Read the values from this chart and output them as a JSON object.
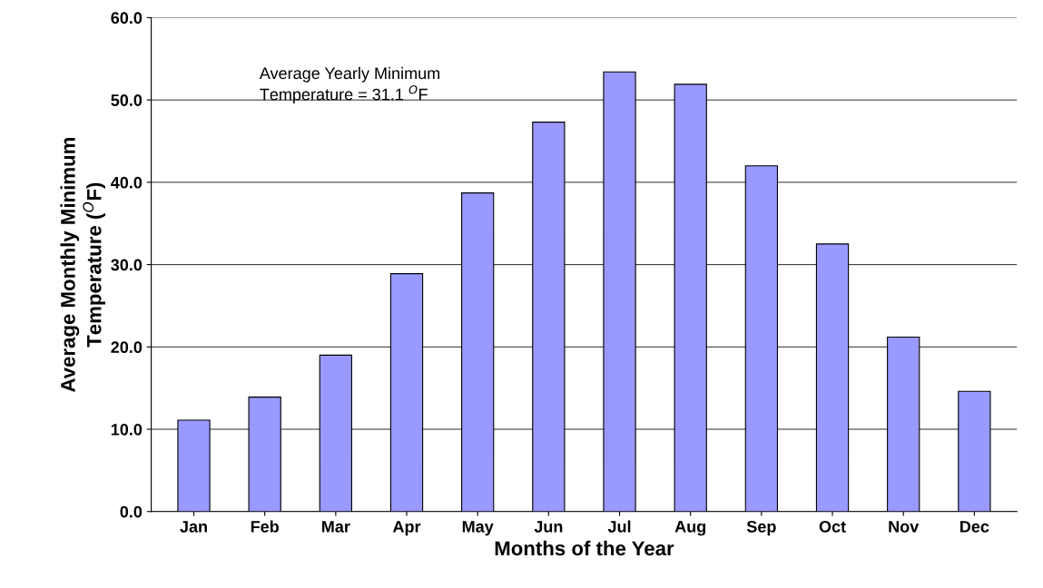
{
  "chart_data": {
    "type": "bar",
    "xlabel": "Months of the Year",
    "ylabel": "Average Monthly Minimum\nTemperature ($^{O}$F)",
    "categories": [
      "Jan",
      "Feb",
      "Mar",
      "Apr",
      "May",
      "Jun",
      "Jul",
      "Aug",
      "Sep",
      "Oct",
      "Nov",
      "Dec"
    ],
    "values": [
      11.1,
      13.9,
      19.0,
      28.9,
      38.7,
      47.3,
      53.4,
      51.9,
      42.0,
      32.5,
      21.2,
      14.6
    ],
    "color": "#9999ff",
    "ylim": [
      0,
      60
    ],
    "yticks": [
      {
        "value": 0,
        "label": "0.0"
      },
      {
        "value": 10,
        "label": "10.0"
      },
      {
        "value": 20,
        "label": "20.0"
      },
      {
        "value": 30,
        "label": "30.0"
      },
      {
        "value": 40,
        "label": "40.0"
      },
      {
        "value": 50,
        "label": "50.0"
      },
      {
        "value": 60,
        "label": "60.0"
      }
    ],
    "grid": "y",
    "annotations": [
      "Average Yearly Minimum\nTemperature = 31.1 $^{O}$F"
    ]
  }
}
